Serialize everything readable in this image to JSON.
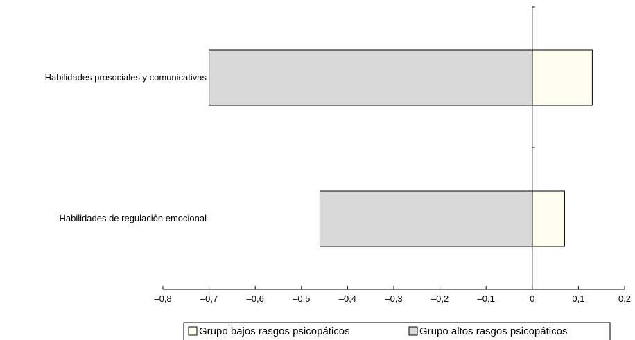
{
  "chart_data": {
    "type": "bar",
    "orientation": "horizontal",
    "categories": [
      "Habilidades prosociales y comunicativas",
      "Habilidades de regulación emocional"
    ],
    "series": [
      {
        "name": "Grupo bajos rasgos psicopáticos",
        "values": [
          0.13,
          0.07
        ],
        "color": "#fffff0"
      },
      {
        "name": "Grupo altos rasgos psicopáticos",
        "values": [
          -0.7,
          -0.46
        ],
        "color": "#d9d9d9"
      }
    ],
    "xlim": [
      -0.8,
      0.2
    ],
    "xticks": [
      -0.8,
      -0.7,
      -0.6,
      -0.5,
      -0.4,
      -0.3,
      -0.2,
      -0.1,
      0,
      0.1,
      0.2
    ],
    "xtick_labels": [
      "–0,8",
      "–0,7",
      "–0,6",
      "–0,5",
      "–0,4",
      "–0,3",
      "–0,2",
      "–0,1",
      "0",
      "0,1",
      "0,2"
    ],
    "title": "",
    "xlabel": "",
    "ylabel": "",
    "legend_position": "bottom-right",
    "grid": false
  }
}
